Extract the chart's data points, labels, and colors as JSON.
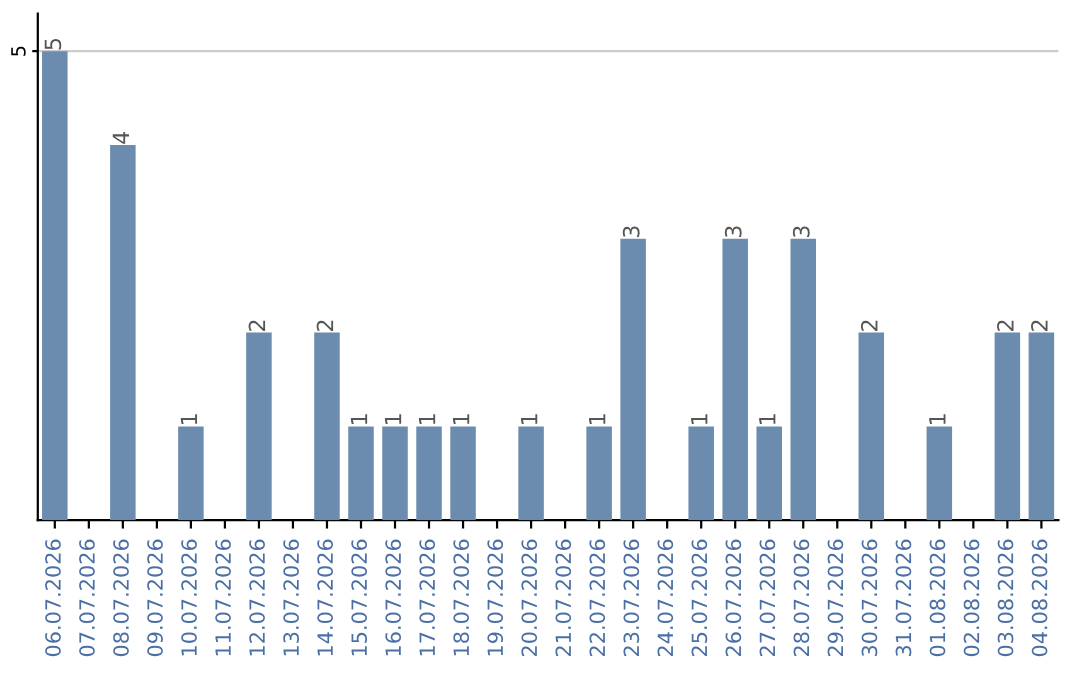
{
  "chart_data": {
    "type": "bar",
    "categories": [
      "06.07.2026",
      "07.07.2026",
      "08.07.2026",
      "09.07.2026",
      "10.07.2026",
      "11.07.2026",
      "12.07.2026",
      "13.07.2026",
      "14.07.2026",
      "15.07.2026",
      "16.07.2026",
      "17.07.2026",
      "18.07.2026",
      "19.07.2026",
      "20.07.2026",
      "21.07.2026",
      "22.07.2026",
      "23.07.2026",
      "24.07.2026",
      "25.07.2026",
      "26.07.2026",
      "27.07.2026",
      "28.07.2026",
      "29.07.2026",
      "30.07.2026",
      "31.07.2026",
      "01.08.2026",
      "02.08.2026",
      "03.08.2026",
      "04.08.2026"
    ],
    "values": [
      5,
      0,
      4,
      0,
      1,
      0,
      2,
      0,
      2,
      1,
      1,
      1,
      1,
      0,
      1,
      0,
      1,
      3,
      0,
      1,
      3,
      1,
      3,
      0,
      2,
      0,
      1,
      0,
      2,
      2
    ],
    "value_labels": [
      "5",
      null,
      "4",
      null,
      "1",
      null,
      "2",
      null,
      "2",
      "1",
      "1",
      "1",
      "1",
      null,
      "1",
      null,
      "1",
      "3",
      null,
      "1",
      "3",
      "1",
      "3",
      null,
      "2",
      null,
      "1",
      null,
      "2",
      "2"
    ],
    "color": "#6b8cae",
    "ylim": [
      0,
      5.4
    ],
    "yticks": [
      5
    ],
    "grid": "y"
  }
}
